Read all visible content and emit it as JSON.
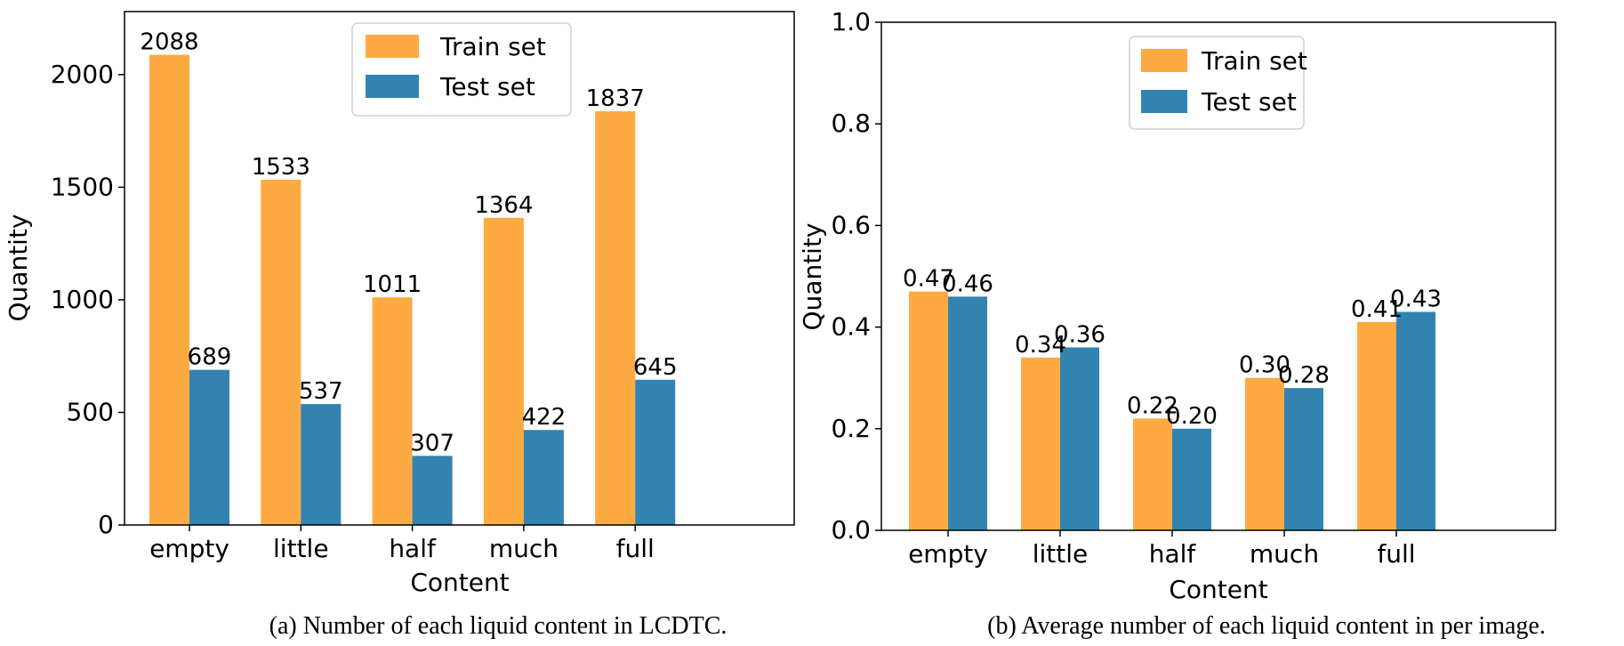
{
  "chart_data": [
    {
      "type": "bar",
      "title": "",
      "xlabel": "Content",
      "ylabel": "Quantity",
      "categories": [
        "empty",
        "little",
        "half",
        "much",
        "full"
      ],
      "series": [
        {
          "name": "Train set",
          "values": [
            2088,
            1533,
            1011,
            1364,
            1837
          ],
          "labels": [
            "2088",
            "1533",
            "1011",
            "1364",
            "1837"
          ],
          "color": "#FDAA43"
        },
        {
          "name": "Test set",
          "values": [
            689,
            537,
            307,
            422,
            645
          ],
          "labels": [
            "689",
            "537",
            "307",
            "422",
            "645"
          ],
          "color": "#3283AF"
        }
      ],
      "ylim": [
        0,
        2280
      ],
      "yticks": [
        0,
        500,
        1000,
        1500,
        2000
      ],
      "ytick_labels": [
        "0",
        "500",
        "1000",
        "1500",
        "2000"
      ],
      "grid": false,
      "legend_position": "top-center",
      "caption": "(a) Number of each liquid content in LCDTC."
    },
    {
      "type": "bar",
      "title": "",
      "xlabel": "Content",
      "ylabel": "Quantity",
      "categories": [
        "empty",
        "little",
        "half",
        "much",
        "full"
      ],
      "series": [
        {
          "name": "Train set",
          "values": [
            0.47,
            0.34,
            0.22,
            0.3,
            0.41
          ],
          "labels": [
            "0.47",
            "0.34",
            "0.22",
            "0.30",
            "0.41"
          ],
          "color": "#FDAA43"
        },
        {
          "name": "Test set",
          "values": [
            0.46,
            0.36,
            0.2,
            0.28,
            0.43
          ],
          "labels": [
            "0.46",
            "0.36",
            "0.20",
            "0.28",
            "0.43"
          ],
          "color": "#3283AF"
        }
      ],
      "ylim": [
        0,
        1.0
      ],
      "yticks": [
        0,
        0.2,
        0.4,
        0.6,
        0.8,
        1.0
      ],
      "ytick_labels": [
        "0.0",
        "0.2",
        "0.4",
        "0.6",
        "0.8",
        "1.0"
      ],
      "grid": false,
      "legend_position": "top-center",
      "caption": "(b) Average number of each liquid content in per image."
    }
  ]
}
